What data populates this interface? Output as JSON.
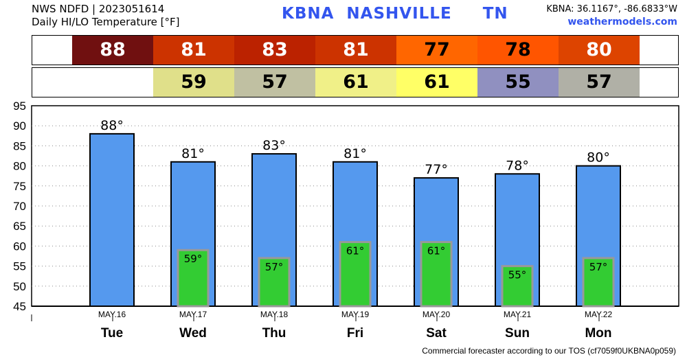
{
  "header": {
    "line1": "NWS NDFD | 2023051614",
    "line2": "Daily HI/LO Temperature [°F]",
    "station_title": "KBNA  NASHVILLE     TN",
    "coords": "KBNA: 36.1167°, -86.6833°W",
    "site": "weathermodels.com"
  },
  "hi_strip": [
    {
      "value": "88",
      "color": "#701010",
      "text_color": "#ffffff"
    },
    {
      "value": "81",
      "color": "#cc3300",
      "text_color": "#ffffff"
    },
    {
      "value": "83",
      "color": "#bb2200",
      "text_color": "#ffffff"
    },
    {
      "value": "81",
      "color": "#cc3300",
      "text_color": "#ffffff"
    },
    {
      "value": "77",
      "color": "#ff6600",
      "text_color": "#000000"
    },
    {
      "value": "78",
      "color": "#ff5500",
      "text_color": "#000000"
    },
    {
      "value": "80",
      "color": "#dd4400",
      "text_color": "#ffffff"
    }
  ],
  "lo_strip": [
    {
      "value": "",
      "color": "#ffffff"
    },
    {
      "value": "59",
      "color": "#e0e08a"
    },
    {
      "value": "57",
      "color": "#c0c0a2"
    },
    {
      "value": "61",
      "color": "#f0f088"
    },
    {
      "value": "61",
      "color": "#ffff66"
    },
    {
      "value": "55",
      "color": "#9090c0"
    },
    {
      "value": "57",
      "color": "#b0b0a6"
    }
  ],
  "chart_data": {
    "type": "bar",
    "categories": [
      "Tue",
      "Wed",
      "Thu",
      "Fri",
      "Sat",
      "Sun",
      "Mon"
    ],
    "dates": [
      "MAY.16",
      "MAY.17",
      "MAY.18",
      "MAY.19",
      "MAY.20",
      "MAY.21",
      "MAY.22"
    ],
    "series": [
      {
        "values": [
          88,
          81,
          83,
          81,
          77,
          78,
          80
        ],
        "color": "#5599ee",
        "labels": [
          "88°",
          "81°",
          "83°",
          "81°",
          "77°",
          "78°",
          "80°"
        ]
      },
      {
        "values": [
          null,
          59,
          57,
          61,
          61,
          55,
          57
        ],
        "color": "#33cc33",
        "labels": [
          "",
          "59°",
          "57°",
          "61°",
          "61°",
          "55°",
          "57°"
        ]
      }
    ],
    "ylim": [
      45,
      95
    ],
    "yticks": [
      "95",
      "90",
      "85",
      "80",
      "75",
      "70",
      "65",
      "60",
      "55",
      "50",
      "45"
    ],
    "grid": true
  },
  "footer": "Commercial forecaster according to our TOS (cf7059f0UKBNA0p059)"
}
